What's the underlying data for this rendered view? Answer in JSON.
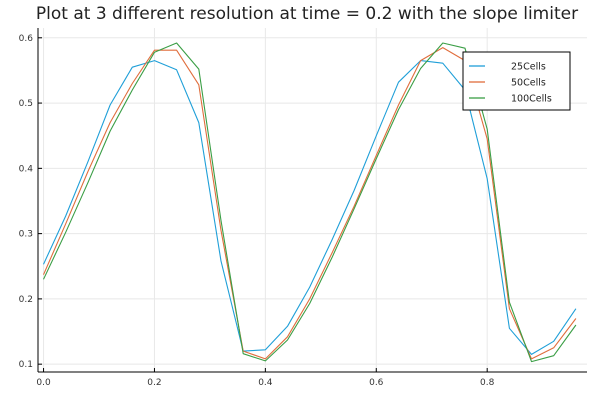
{
  "chart_data": {
    "type": "line",
    "title": "Plot at 3 different resolution at time = 0.2 with the slope limiter",
    "xlabel": "",
    "ylabel": "",
    "xlim": [
      -0.01,
      0.98
    ],
    "ylim": [
      0.088,
      0.615
    ],
    "grid": true,
    "legend_position": "top-right",
    "x_ticks": [
      0.0,
      0.2,
      0.4,
      0.6,
      0.8
    ],
    "x_tick_labels": [
      "0.0",
      "0.2",
      "0.4",
      "0.6",
      "0.8"
    ],
    "y_ticks": [
      0.1,
      0.2,
      0.3,
      0.4,
      0.5,
      0.6
    ],
    "y_tick_labels": [
      "0.1",
      "0.2",
      "0.3",
      "0.4",
      "0.5",
      "0.6"
    ],
    "series": [
      {
        "name": "25Cells",
        "color": "#1f9fd8",
        "x": [
          0.0,
          0.04,
          0.08,
          0.12,
          0.16,
          0.2,
          0.24,
          0.28,
          0.32,
          0.36,
          0.4,
          0.44,
          0.48,
          0.52,
          0.56,
          0.6,
          0.64,
          0.68,
          0.72,
          0.76,
          0.8,
          0.84,
          0.88,
          0.92,
          0.96
        ],
        "values": [
          0.253,
          0.327,
          0.41,
          0.497,
          0.555,
          0.565,
          0.551,
          0.47,
          0.258,
          0.12,
          0.122,
          0.158,
          0.218,
          0.29,
          0.366,
          0.45,
          0.532,
          0.565,
          0.561,
          0.52,
          0.384,
          0.155,
          0.115,
          0.135,
          0.185
        ]
      },
      {
        "name": "50Cells",
        "color": "#e06d3c",
        "x": [
          0.0,
          0.04,
          0.08,
          0.12,
          0.16,
          0.2,
          0.24,
          0.28,
          0.32,
          0.36,
          0.4,
          0.44,
          0.48,
          0.52,
          0.56,
          0.6,
          0.64,
          0.68,
          0.72,
          0.76,
          0.8,
          0.84,
          0.88,
          0.92,
          0.96
        ],
        "values": [
          0.237,
          0.315,
          0.395,
          0.47,
          0.53,
          0.581,
          0.581,
          0.528,
          0.305,
          0.12,
          0.108,
          0.142,
          0.2,
          0.27,
          0.342,
          0.42,
          0.497,
          0.565,
          0.585,
          0.565,
          0.445,
          0.185,
          0.108,
          0.125,
          0.17
        ]
      },
      {
        "name": "100Cells",
        "color": "#3a9e45",
        "x": [
          0.0,
          0.04,
          0.08,
          0.12,
          0.16,
          0.2,
          0.24,
          0.28,
          0.32,
          0.36,
          0.4,
          0.44,
          0.48,
          0.52,
          0.56,
          0.6,
          0.64,
          0.68,
          0.72,
          0.76,
          0.8,
          0.84,
          0.88,
          0.92,
          0.96
        ],
        "values": [
          0.23,
          0.302,
          0.378,
          0.457,
          0.52,
          0.578,
          0.592,
          0.552,
          0.32,
          0.116,
          0.105,
          0.137,
          0.193,
          0.263,
          0.338,
          0.415,
          0.49,
          0.553,
          0.592,
          0.584,
          0.46,
          0.195,
          0.104,
          0.113,
          0.16
        ]
      }
    ]
  }
}
